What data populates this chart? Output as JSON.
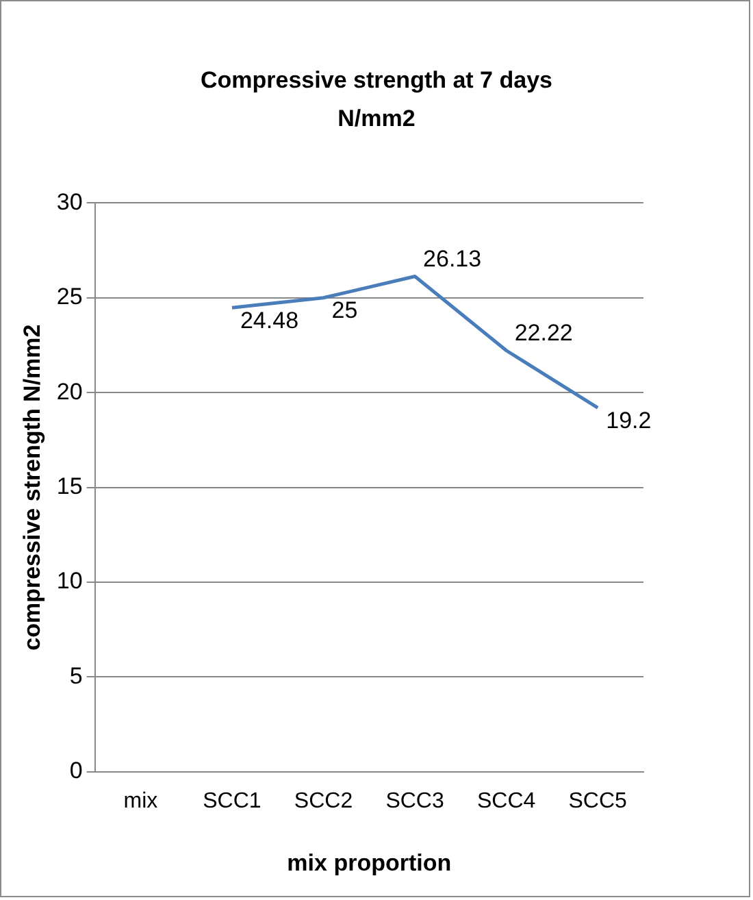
{
  "chart_data": {
    "type": "line",
    "title": "Compressive strength at 7 days N/mm2",
    "xlabel": "mix proportion",
    "ylabel": "compressive strength N/mm2",
    "categories": [
      "mix",
      "SCC1",
      "SCC2",
      "SCC3",
      "SCC4",
      "SCC5"
    ],
    "series": [
      {
        "color": "#4a7ebb",
        "values": [
          null,
          24.48,
          25,
          26.13,
          22.22,
          19.2
        ]
      }
    ],
    "ylim": [
      0,
      30
    ],
    "yticks": [
      0,
      5,
      10,
      15,
      20,
      25,
      30
    ],
    "grid": "y",
    "legend": false,
    "marker": "none",
    "line_style": "solid",
    "data_labels": true
  }
}
